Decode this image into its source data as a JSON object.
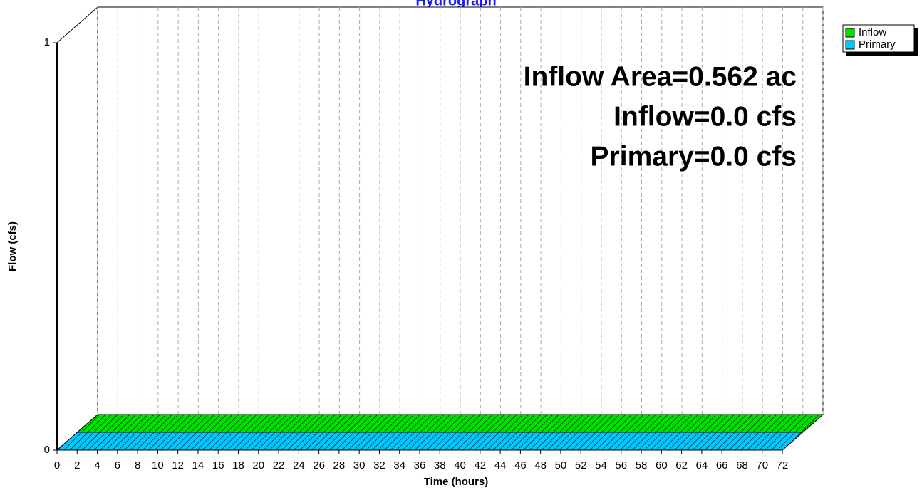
{
  "chart_data": {
    "type": "area3d",
    "title": "Hydrograph",
    "x_label": "Time  (hours)",
    "y_label": "Flow  (cfs)",
    "x": [
      0,
      72
    ],
    "series": [
      {
        "name": "Inflow",
        "color": "#00e000",
        "values": [
          0,
          0
        ]
      },
      {
        "name": "Primary",
        "color": "#00c8ff",
        "values": [
          0,
          0
        ]
      }
    ],
    "xlim": [
      0,
      72
    ],
    "xticks": [
      0,
      2,
      4,
      6,
      8,
      10,
      12,
      14,
      16,
      18,
      20,
      22,
      24,
      26,
      28,
      30,
      32,
      34,
      36,
      38,
      40,
      42,
      44,
      46,
      48,
      50,
      52,
      54,
      56,
      58,
      60,
      62,
      64,
      66,
      68,
      70,
      72
    ],
    "ylim": [
      0,
      1
    ],
    "yticks": [
      0,
      1
    ],
    "annotations": [
      "Inflow Area=0.562 ac",
      "Inflow=0.0 cfs",
      "Primary=0.0 cfs"
    ],
    "grid": true,
    "legend": "top-right"
  }
}
